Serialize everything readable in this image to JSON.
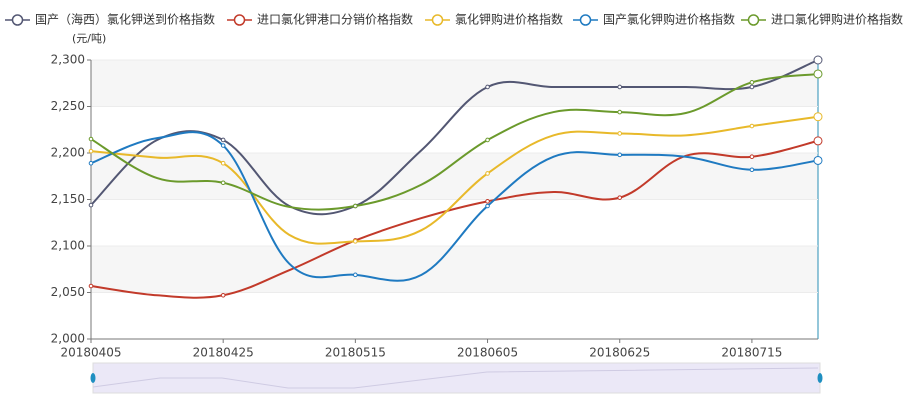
{
  "chart_data": {
    "type": "line",
    "y_label": "(元/吨)",
    "categories": [
      "20180405",
      null,
      "20180425",
      null,
      "20180515",
      null,
      "20180605",
      null,
      "20180625",
      null,
      "20180715",
      null
    ],
    "series": [
      {
        "name": "国产（海西）氯化钾送到价格指数",
        "color": "#535773",
        "values": [
          2144,
          2214,
          2214,
          2143,
          2143,
          2203,
          2271,
          2271,
          2271,
          2271,
          2271,
          2300
        ]
      },
      {
        "name": "进口氯化钾港口分销价格指数",
        "color": "#c23a2a",
        "values": [
          2057,
          2047,
          2047,
          2074,
          2106,
          2130,
          2148,
          2158,
          2152,
          2197,
          2196,
          2213
        ]
      },
      {
        "name": "氯化钾购进价格指数",
        "color": "#e8b92a",
        "values": [
          2202,
          2195,
          2189,
          2112,
          2105,
          2117,
          2178,
          2219,
          2221,
          2219,
          2229,
          2239
        ]
      },
      {
        "name": "国产氯化钾购进价格指数",
        "color": "#1f7ac1",
        "values": [
          2189,
          2216,
          2208,
          2081,
          2069,
          2069,
          2143,
          2196,
          2198,
          2196,
          2182,
          2192
        ]
      },
      {
        "name": "进口氯化钾购进价格指数",
        "color": "#6b9a2c",
        "values": [
          2215,
          2173,
          2168,
          2142,
          2143,
          2166,
          2214,
          2244,
          2244,
          2243,
          2276,
          2285
        ]
      }
    ],
    "ylim": [
      2000,
      2300
    ],
    "yticks": [
      {
        "value": 2000,
        "label": "2,000"
      },
      {
        "value": 2050,
        "label": "2,050"
      },
      {
        "value": 2100,
        "label": "2,100"
      },
      {
        "value": 2150,
        "label": "2,150"
      },
      {
        "value": 2200,
        "label": "2,200"
      },
      {
        "value": 2250,
        "label": "2,250"
      },
      {
        "value": 2300,
        "label": "2,300"
      }
    ],
    "grid": true
  }
}
